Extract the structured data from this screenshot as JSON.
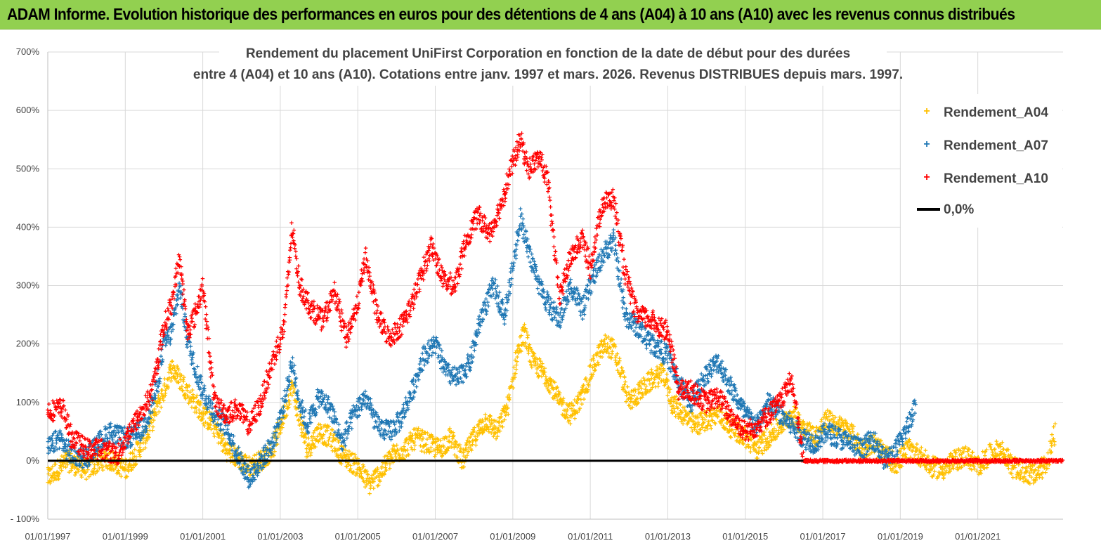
{
  "banner": {
    "title": "ADAM Informe. Evolution historique des performances en euros pour des détentions de 4 ans (A04) à 10 ans (A10) avec les revenus connus distribués",
    "color": "#92d050"
  },
  "chart_data": {
    "type": "scatter",
    "title_lines": [
      "Rendement du placement UniFirst Corporation en fonction de la date de début pour des durées",
      "entre 4 (A04) et 10 ans (A10). Cotations entre janv. 1997 et mars. 2026. Revenus DISTRIBUES depuis mars. 1997."
    ],
    "x_ticks": [
      "01/01/1997",
      "01/01/1999",
      "01/01/2001",
      "01/01/2003",
      "01/01/2005",
      "01/01/2007",
      "01/01/2009",
      "01/01/2011",
      "01/01/2013",
      "01/01/2015",
      "01/01/2017",
      "01/01/2019",
      "01/01/2021"
    ],
    "y_ticks": [
      "- 100%",
      "0%",
      "100%",
      "200%",
      "300%",
      "400%",
      "500%",
      "600%",
      "700%"
    ],
    "ylim": [
      -100,
      700
    ],
    "xlim": [
      1997.0,
      2023.2
    ],
    "grid": true,
    "legend_position": "top-right",
    "series": [
      {
        "name": "Rendement_A04",
        "color": "#ffc000",
        "points": [
          [
            1997.0,
            -30
          ],
          [
            1997.5,
            0
          ],
          [
            1998.0,
            -15
          ],
          [
            1998.5,
            5
          ],
          [
            1998.8,
            -5
          ],
          [
            1999.0,
            -15
          ],
          [
            1999.3,
            15
          ],
          [
            1999.6,
            50
          ],
          [
            1999.8,
            90
          ],
          [
            2000.0,
            120
          ],
          [
            2000.2,
            160
          ],
          [
            2000.4,
            140
          ],
          [
            2000.6,
            120
          ],
          [
            2000.8,
            100
          ],
          [
            2001.0,
            80
          ],
          [
            2001.3,
            60
          ],
          [
            2001.6,
            20
          ],
          [
            2001.9,
            5
          ],
          [
            2002.2,
            -10
          ],
          [
            2002.5,
            0
          ],
          [
            2002.8,
            20
          ],
          [
            2003.1,
            80
          ],
          [
            2003.3,
            130
          ],
          [
            2003.5,
            70
          ],
          [
            2003.7,
            20
          ],
          [
            2004.0,
            50
          ],
          [
            2004.3,
            40
          ],
          [
            2004.6,
            10
          ],
          [
            2005.0,
            -10
          ],
          [
            2005.3,
            -40
          ],
          [
            2005.6,
            -20
          ],
          [
            2005.9,
            10
          ],
          [
            2006.2,
            20
          ],
          [
            2006.5,
            40
          ],
          [
            2006.8,
            30
          ],
          [
            2007.1,
            20
          ],
          [
            2007.4,
            40
          ],
          [
            2007.7,
            0
          ],
          [
            2008.0,
            40
          ],
          [
            2008.3,
            70
          ],
          [
            2008.6,
            50
          ],
          [
            2008.9,
            100
          ],
          [
            2009.1,
            180
          ],
          [
            2009.3,
            220
          ],
          [
            2009.5,
            170
          ],
          [
            2009.8,
            150
          ],
          [
            2010.0,
            130
          ],
          [
            2010.2,
            100
          ],
          [
            2010.5,
            80
          ],
          [
            2010.8,
            110
          ],
          [
            2011.0,
            150
          ],
          [
            2011.2,
            180
          ],
          [
            2011.4,
            200
          ],
          [
            2011.6,
            190
          ],
          [
            2011.8,
            150
          ],
          [
            2012.0,
            100
          ],
          [
            2012.3,
            120
          ],
          [
            2012.6,
            140
          ],
          [
            2012.9,
            150
          ],
          [
            2013.1,
            100
          ],
          [
            2013.4,
            80
          ],
          [
            2013.7,
            60
          ],
          [
            2014.0,
            70
          ],
          [
            2014.3,
            80
          ],
          [
            2014.6,
            60
          ],
          [
            2015.0,
            40
          ],
          [
            2015.3,
            20
          ],
          [
            2015.6,
            40
          ],
          [
            2015.9,
            60
          ],
          [
            2016.2,
            80
          ],
          [
            2016.5,
            60
          ],
          [
            2016.8,
            40
          ],
          [
            2017.1,
            70
          ],
          [
            2017.4,
            60
          ],
          [
            2017.7,
            50
          ],
          [
            2018.0,
            20
          ],
          [
            2018.3,
            30
          ],
          [
            2018.6,
            10
          ],
          [
            2018.9,
            -5
          ],
          [
            2019.2,
            20
          ],
          [
            2019.5,
            10
          ],
          [
            2019.8,
            -10
          ],
          [
            2020.1,
            -15
          ],
          [
            2020.4,
            0
          ],
          [
            2020.7,
            10
          ],
          [
            2021.0,
            -10
          ],
          [
            2021.3,
            10
          ],
          [
            2021.6,
            20
          ],
          [
            2021.9,
            -10
          ],
          [
            2022.2,
            -20
          ],
          [
            2022.5,
            -25
          ],
          [
            2022.8,
            0
          ],
          [
            2023.0,
            50
          ]
        ]
      },
      {
        "name": "Rendement_A07",
        "color": "#1f77b4",
        "points": [
          [
            1997.0,
            20
          ],
          [
            1997.3,
            40
          ],
          [
            1997.6,
            10
          ],
          [
            1998.0,
            5
          ],
          [
            1998.3,
            30
          ],
          [
            1998.6,
            50
          ],
          [
            1998.9,
            40
          ],
          [
            1999.2,
            40
          ],
          [
            1999.5,
            60
          ],
          [
            1999.8,
            120
          ],
          [
            2000.0,
            200
          ],
          [
            2000.2,
            220
          ],
          [
            2000.4,
            300
          ],
          [
            2000.6,
            210
          ],
          [
            2000.8,
            160
          ],
          [
            2001.0,
            120
          ],
          [
            2001.3,
            80
          ],
          [
            2001.6,
            60
          ],
          [
            2001.9,
            10
          ],
          [
            2002.2,
            -30
          ],
          [
            2002.5,
            0
          ],
          [
            2002.8,
            30
          ],
          [
            2003.1,
            100
          ],
          [
            2003.3,
            170
          ],
          [
            2003.5,
            100
          ],
          [
            2003.7,
            60
          ],
          [
            2004.0,
            110
          ],
          [
            2004.3,
            90
          ],
          [
            2004.6,
            30
          ],
          [
            2004.9,
            80
          ],
          [
            2005.2,
            110
          ],
          [
            2005.5,
            60
          ],
          [
            2005.8,
            50
          ],
          [
            2006.1,
            70
          ],
          [
            2006.4,
            120
          ],
          [
            2006.7,
            180
          ],
          [
            2007.0,
            200
          ],
          [
            2007.3,
            150
          ],
          [
            2007.6,
            140
          ],
          [
            2007.9,
            170
          ],
          [
            2008.2,
            250
          ],
          [
            2008.5,
            300
          ],
          [
            2008.8,
            250
          ],
          [
            2009.0,
            330
          ],
          [
            2009.2,
            420
          ],
          [
            2009.4,
            360
          ],
          [
            2009.7,
            300
          ],
          [
            2009.9,
            270
          ],
          [
            2010.2,
            240
          ],
          [
            2010.5,
            300
          ],
          [
            2010.8,
            260
          ],
          [
            2011.0,
            300
          ],
          [
            2011.3,
            350
          ],
          [
            2011.6,
            380
          ],
          [
            2011.9,
            250
          ],
          [
            2012.2,
            230
          ],
          [
            2012.6,
            200
          ],
          [
            2013.0,
            180
          ],
          [
            2013.3,
            130
          ],
          [
            2013.6,
            100
          ],
          [
            2014.0,
            150
          ],
          [
            2014.3,
            170
          ],
          [
            2014.6,
            130
          ],
          [
            2015.0,
            80
          ],
          [
            2015.3,
            60
          ],
          [
            2015.6,
            100
          ],
          [
            2015.9,
            80
          ],
          [
            2016.2,
            60
          ],
          [
            2016.5,
            40
          ],
          [
            2016.8,
            30
          ],
          [
            2017.1,
            50
          ],
          [
            2017.4,
            40
          ],
          [
            2017.7,
            30
          ],
          [
            2018.0,
            20
          ],
          [
            2018.3,
            40
          ],
          [
            2018.6,
            0
          ],
          [
            2018.9,
            20
          ],
          [
            2019.2,
            60
          ],
          [
            2019.4,
            100
          ]
        ]
      },
      {
        "name": "Rendement_A10",
        "color": "#ff0000",
        "points": [
          [
            1997.0,
            85
          ],
          [
            1997.4,
            90
          ],
          [
            1997.6,
            40
          ],
          [
            1998.0,
            20
          ],
          [
            1998.4,
            20
          ],
          [
            1998.8,
            10
          ],
          [
            1999.1,
            50
          ],
          [
            1999.4,
            80
          ],
          [
            1999.7,
            120
          ],
          [
            2000.0,
            230
          ],
          [
            2000.2,
            270
          ],
          [
            2000.4,
            350
          ],
          [
            2000.6,
            220
          ],
          [
            2000.8,
            250
          ],
          [
            2001.0,
            300
          ],
          [
            2001.3,
            100
          ],
          [
            2001.6,
            80
          ],
          [
            2001.9,
            90
          ],
          [
            2002.2,
            60
          ],
          [
            2002.5,
            100
          ],
          [
            2002.8,
            170
          ],
          [
            2003.1,
            230
          ],
          [
            2003.3,
            400
          ],
          [
            2003.5,
            300
          ],
          [
            2003.8,
            260
          ],
          [
            2004.1,
            240
          ],
          [
            2004.4,
            290
          ],
          [
            2004.7,
            210
          ],
          [
            2005.0,
            270
          ],
          [
            2005.2,
            350
          ],
          [
            2005.5,
            250
          ],
          [
            2005.8,
            210
          ],
          [
            2006.1,
            230
          ],
          [
            2006.4,
            270
          ],
          [
            2006.7,
            330
          ],
          [
            2006.9,
            370
          ],
          [
            2007.2,
            310
          ],
          [
            2007.5,
            300
          ],
          [
            2007.8,
            380
          ],
          [
            2008.1,
            420
          ],
          [
            2008.4,
            390
          ],
          [
            2008.7,
            440
          ],
          [
            2009.0,
            510
          ],
          [
            2009.2,
            550
          ],
          [
            2009.4,
            500
          ],
          [
            2009.7,
            520
          ],
          [
            2009.9,
            480
          ],
          [
            2010.2,
            280
          ],
          [
            2010.5,
            350
          ],
          [
            2010.8,
            380
          ],
          [
            2011.0,
            330
          ],
          [
            2011.3,
            440
          ],
          [
            2011.6,
            450
          ],
          [
            2011.9,
            320
          ],
          [
            2012.2,
            250
          ],
          [
            2012.6,
            240
          ],
          [
            2013.0,
            220
          ],
          [
            2013.3,
            120
          ],
          [
            2013.6,
            120
          ],
          [
            2014.0,
            100
          ],
          [
            2014.3,
            110
          ],
          [
            2014.6,
            80
          ],
          [
            2015.0,
            50
          ],
          [
            2015.3,
            60
          ],
          [
            2015.6,
            80
          ],
          [
            2015.9,
            100
          ],
          [
            2016.2,
            140
          ],
          [
            2016.5,
            0
          ],
          [
            2017.5,
            0
          ],
          [
            2018.5,
            0
          ],
          [
            2019.5,
            0
          ],
          [
            2020.5,
            0
          ],
          [
            2021.5,
            0
          ],
          [
            2022.5,
            0
          ],
          [
            2023.2,
            0
          ]
        ]
      },
      {
        "name": "0,0%",
        "color": "#000000",
        "line": [
          [
            1997.0,
            0
          ],
          [
            2016.5,
            0
          ]
        ]
      }
    ]
  }
}
